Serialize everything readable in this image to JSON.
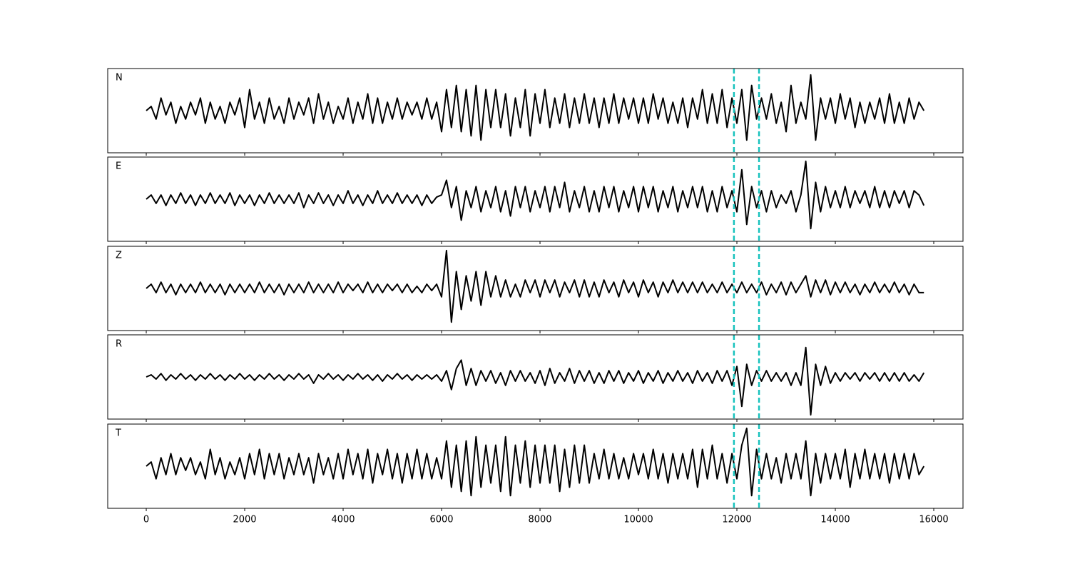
{
  "chart_data": {
    "type": "line",
    "x": [
      0,
      100,
      200,
      300,
      400,
      500,
      600,
      700,
      800,
      900,
      1000,
      1100,
      1200,
      1300,
      1400,
      1500,
      1600,
      1700,
      1800,
      1900,
      2000,
      2100,
      2200,
      2300,
      2400,
      2500,
      2600,
      2700,
      2800,
      2900,
      3000,
      3100,
      3200,
      3300,
      3400,
      3500,
      3600,
      3700,
      3800,
      3900,
      4000,
      4100,
      4200,
      4300,
      4400,
      4500,
      4600,
      4700,
      4800,
      4900,
      5000,
      5100,
      5200,
      5300,
      5400,
      5500,
      5600,
      5700,
      5800,
      5900,
      6000,
      6100,
      6200,
      6300,
      6400,
      6500,
      6600,
      6700,
      6800,
      6900,
      7000,
      7100,
      7200,
      7300,
      7400,
      7500,
      7600,
      7700,
      7800,
      7900,
      8000,
      8100,
      8200,
      8300,
      8400,
      8500,
      8600,
      8700,
      8800,
      8900,
      9000,
      9100,
      9200,
      9300,
      9400,
      9500,
      9600,
      9700,
      9800,
      9900,
      10000,
      10100,
      10200,
      10300,
      10400,
      10500,
      10600,
      10700,
      10800,
      10900,
      11000,
      11100,
      11200,
      11300,
      11400,
      11500,
      11600,
      11700,
      11800,
      11900,
      12000,
      12100,
      12200,
      12300,
      12400,
      12500,
      12600,
      12700,
      12800,
      12900,
      13000,
      13100,
      13200,
      13300,
      13400,
      13500,
      13600,
      13700,
      13800,
      13900,
      14000,
      14100,
      14200,
      14300,
      14400,
      14500,
      14600,
      14700,
      14800,
      14900,
      15000,
      15100,
      15200,
      15300,
      15400,
      15500,
      15600,
      15700,
      15800
    ],
    "series": [
      {
        "name": "N",
        "color": "#000000",
        "values": [
          0,
          0.1,
          -0.2,
          0.3,
          -0.1,
          0.2,
          -0.3,
          0.1,
          -0.2,
          0.2,
          -0.1,
          0.3,
          -0.3,
          0.2,
          -0.2,
          0.1,
          -0.3,
          0.2,
          -0.1,
          0.3,
          -0.4,
          0.5,
          -0.2,
          0.2,
          -0.3,
          0.3,
          -0.2,
          0.1,
          -0.3,
          0.3,
          -0.2,
          0.2,
          -0.1,
          0.3,
          -0.3,
          0.4,
          -0.2,
          0.2,
          -0.3,
          0.1,
          -0.2,
          0.3,
          -0.3,
          0.2,
          -0.2,
          0.4,
          -0.3,
          0.3,
          -0.3,
          0.2,
          -0.2,
          0.3,
          -0.2,
          0.2,
          -0.1,
          0.2,
          -0.2,
          0.3,
          -0.2,
          0.2,
          -0.5,
          0.5,
          -0.4,
          0.6,
          -0.5,
          0.5,
          -0.6,
          0.6,
          -0.7,
          0.5,
          -0.4,
          0.5,
          -0.4,
          0.4,
          -0.6,
          0.3,
          -0.4,
          0.5,
          -0.6,
          0.4,
          -0.3,
          0.5,
          -0.4,
          0.3,
          -0.3,
          0.4,
          -0.4,
          0.3,
          -0.3,
          0.4,
          -0.3,
          0.3,
          -0.4,
          0.3,
          -0.3,
          0.4,
          -0.3,
          0.3,
          -0.2,
          0.3,
          -0.3,
          0.3,
          -0.3,
          0.4,
          -0.2,
          0.3,
          -0.3,
          0.2,
          -0.3,
          0.3,
          -0.4,
          0.3,
          -0.2,
          0.5,
          -0.3,
          0.4,
          -0.3,
          0.5,
          -0.4,
          0.3,
          -0.3,
          0.5,
          -0.7,
          0.6,
          -0.2,
          0.3,
          -0.2,
          0.4,
          -0.3,
          0.2,
          -0.5,
          0.6,
          -0.3,
          0.2,
          -0.2,
          0.85,
          -0.7,
          0.3,
          -0.2,
          0.3,
          -0.3,
          0.4,
          -0.2,
          0.3,
          -0.4,
          0.2,
          -0.3,
          0.2,
          -0.2,
          0.3,
          -0.3,
          0.4,
          -0.3,
          0.2,
          -0.3,
          0.3,
          -0.2,
          0.2,
          0
        ]
      },
      {
        "name": "E",
        "color": "#000000",
        "values": [
          0,
          0.1,
          -0.1,
          0.1,
          -0.15,
          0.1,
          -0.1,
          0.15,
          -0.1,
          0.1,
          -0.15,
          0.1,
          -0.1,
          0.15,
          -0.1,
          0.1,
          -0.1,
          0.15,
          -0.15,
          0.1,
          -0.1,
          0.1,
          -0.15,
          0.1,
          -0.1,
          0.15,
          -0.1,
          0.1,
          -0.1,
          0.1,
          -0.1,
          0.15,
          -0.2,
          0.1,
          -0.1,
          0.15,
          -0.1,
          0.1,
          -0.15,
          0.1,
          -0.1,
          0.2,
          -0.1,
          0.1,
          -0.15,
          0.1,
          -0.1,
          0.2,
          -0.1,
          0.1,
          -0.1,
          0.15,
          -0.1,
          0.1,
          -0.1,
          0.1,
          -0.15,
          0.1,
          -0.1,
          0.05,
          0.1,
          0.45,
          -0.2,
          0.3,
          -0.5,
          0.2,
          -0.2,
          0.3,
          -0.3,
          0.2,
          -0.2,
          0.3,
          -0.3,
          0.2,
          -0.4,
          0.3,
          -0.2,
          0.3,
          -0.3,
          0.2,
          -0.2,
          0.3,
          -0.3,
          0.3,
          -0.2,
          0.4,
          -0.3,
          0.2,
          -0.2,
          0.3,
          -0.3,
          0.2,
          -0.3,
          0.3,
          -0.2,
          0.3,
          -0.3,
          0.2,
          -0.2,
          0.3,
          -0.3,
          0.3,
          -0.2,
          0.3,
          -0.3,
          0.2,
          -0.2,
          0.3,
          -0.3,
          0.2,
          -0.2,
          0.3,
          -0.2,
          0.3,
          -0.3,
          0.2,
          -0.3,
          0.3,
          -0.2,
          0.2,
          -0.3,
          0.7,
          -0.6,
          0.3,
          -0.2,
          0.2,
          -0.3,
          0.2,
          -0.2,
          0.1,
          -0.1,
          0.2,
          -0.3,
          0.1,
          0.9,
          -0.7,
          0.4,
          -0.3,
          0.3,
          -0.2,
          0.2,
          -0.2,
          0.3,
          -0.2,
          0.2,
          -0.1,
          0.2,
          -0.2,
          0.3,
          -0.2,
          0.2,
          -0.2,
          0.2,
          -0.1,
          0.2,
          -0.2,
          0.2,
          0.1,
          -0.15
        ]
      },
      {
        "name": "Z",
        "color": "#000000",
        "values": [
          0,
          0.1,
          -0.1,
          0.15,
          -0.1,
          0.1,
          -0.15,
          0.1,
          -0.1,
          0.1,
          -0.1,
          0.15,
          -0.1,
          0.1,
          -0.1,
          0.1,
          -0.15,
          0.1,
          -0.1,
          0.1,
          -0.1,
          0.1,
          -0.1,
          0.15,
          -0.1,
          0.1,
          -0.1,
          0.1,
          -0.15,
          0.1,
          -0.1,
          0.1,
          -0.1,
          0.15,
          -0.1,
          0.1,
          -0.1,
          0.1,
          -0.1,
          0.15,
          -0.1,
          0.1,
          -0.05,
          0.1,
          -0.1,
          0.15,
          -0.1,
          0.1,
          -0.1,
          0.1,
          -0.05,
          0.1,
          -0.1,
          0.1,
          -0.1,
          0.05,
          -0.1,
          0.1,
          -0.05,
          0.1,
          -0.2,
          0.9,
          -0.8,
          0.4,
          -0.5,
          0.3,
          -0.3,
          0.4,
          -0.4,
          0.4,
          -0.2,
          0.3,
          -0.2,
          0.2,
          -0.2,
          0.1,
          -0.2,
          0.2,
          -0.1,
          0.2,
          -0.2,
          0.2,
          -0.1,
          0.2,
          -0.2,
          0.15,
          -0.1,
          0.2,
          -0.2,
          0.2,
          -0.2,
          0.15,
          -0.2,
          0.2,
          -0.1,
          0.15,
          -0.2,
          0.2,
          -0.1,
          0.15,
          -0.2,
          0.2,
          -0.1,
          0.15,
          -0.2,
          0.15,
          -0.1,
          0.2,
          -0.1,
          0.15,
          -0.1,
          0.15,
          -0.1,
          0.15,
          -0.1,
          0.1,
          -0.1,
          0.15,
          -0.1,
          0.1,
          -0.1,
          0.15,
          -0.1,
          0.1,
          -0.1,
          0.15,
          -0.15,
          0.1,
          -0.1,
          0.15,
          -0.15,
          0.15,
          -0.1,
          0.1,
          0.3,
          -0.2,
          0.2,
          -0.1,
          0.2,
          -0.15,
          0.15,
          -0.1,
          0.15,
          -0.1,
          0.1,
          -0.15,
          0.1,
          -0.1,
          0.15,
          -0.1,
          0.1,
          -0.1,
          0.15,
          -0.1,
          0.1,
          -0.15,
          0.1,
          -0.1,
          -0.1
        ]
      },
      {
        "name": "R",
        "color": "#000000",
        "values": [
          0,
          0.05,
          -0.05,
          0.08,
          -0.08,
          0.05,
          -0.05,
          0.08,
          -0.05,
          0.05,
          -0.08,
          0.05,
          -0.05,
          0.08,
          -0.05,
          0.05,
          -0.08,
          0.05,
          -0.05,
          0.08,
          -0.05,
          0.05,
          -0.08,
          0.05,
          -0.05,
          0.08,
          -0.05,
          0.05,
          -0.08,
          0.05,
          -0.05,
          0.08,
          -0.05,
          0.05,
          -0.15,
          0.05,
          -0.05,
          0.08,
          -0.05,
          0.05,
          -0.08,
          0.05,
          -0.05,
          0.08,
          -0.05,
          0.05,
          -0.08,
          0.05,
          -0.1,
          0.05,
          -0.05,
          0.08,
          -0.05,
          0.05,
          -0.08,
          0.05,
          -0.05,
          0.05,
          -0.05,
          0.05,
          -0.1,
          0.15,
          -0.3,
          0.2,
          0.4,
          -0.2,
          0.2,
          -0.2,
          0.15,
          -0.1,
          0.15,
          -0.15,
          0.1,
          -0.2,
          0.15,
          -0.1,
          0.15,
          -0.1,
          0.1,
          -0.15,
          0.15,
          -0.2,
          0.2,
          -0.15,
          0.1,
          -0.1,
          0.2,
          -0.15,
          0.15,
          -0.1,
          0.15,
          -0.15,
          0.1,
          -0.15,
          0.15,
          -0.1,
          0.15,
          -0.15,
          0.1,
          -0.1,
          0.15,
          -0.15,
          0.1,
          -0.1,
          0.15,
          -0.15,
          0.1,
          -0.1,
          0.15,
          -0.1,
          0.1,
          -0.15,
          0.15,
          -0.1,
          0.1,
          -0.15,
          0.15,
          -0.1,
          0.15,
          -0.2,
          0.25,
          -0.7,
          0.3,
          -0.2,
          0.15,
          -0.1,
          0.15,
          -0.1,
          0.1,
          -0.1,
          0.1,
          -0.2,
          0.1,
          -0.2,
          0.7,
          -0.9,
          0.3,
          -0.2,
          0.25,
          -0.15,
          0.1,
          -0.1,
          0.1,
          -0.05,
          0.1,
          -0.1,
          0.1,
          -0.05,
          0.1,
          -0.1,
          0.1,
          -0.1,
          0.1,
          -0.1,
          0.1,
          -0.1,
          0.05,
          -0.1,
          0.1
        ]
      },
      {
        "name": "T",
        "color": "#000000",
        "values": [
          0,
          0.1,
          -0.3,
          0.2,
          -0.2,
          0.3,
          -0.2,
          0.2,
          -0.1,
          0.2,
          -0.2,
          0.1,
          -0.3,
          0.4,
          -0.2,
          0.2,
          -0.3,
          0.1,
          -0.2,
          0.2,
          -0.3,
          0.3,
          -0.2,
          0.4,
          -0.3,
          0.3,
          -0.2,
          0.3,
          -0.3,
          0.2,
          -0.2,
          0.3,
          -0.2,
          0.2,
          -0.4,
          0.3,
          -0.2,
          0.2,
          -0.3,
          0.3,
          -0.3,
          0.4,
          -0.2,
          0.3,
          -0.3,
          0.4,
          -0.4,
          0.3,
          -0.2,
          0.4,
          -0.3,
          0.3,
          -0.4,
          0.3,
          -0.3,
          0.4,
          -0.3,
          0.3,
          -0.3,
          0.2,
          -0.3,
          0.6,
          -0.5,
          0.5,
          -0.6,
          0.6,
          -0.7,
          0.7,
          -0.5,
          0.5,
          -0.4,
          0.5,
          -0.6,
          0.7,
          -0.7,
          0.5,
          -0.4,
          0.6,
          -0.5,
          0.5,
          -0.4,
          0.5,
          -0.4,
          0.5,
          -0.6,
          0.4,
          -0.5,
          0.5,
          -0.4,
          0.5,
          -0.4,
          0.3,
          -0.3,
          0.4,
          -0.3,
          0.3,
          -0.3,
          0.2,
          -0.3,
          0.3,
          -0.2,
          0.3,
          -0.3,
          0.4,
          -0.3,
          0.3,
          -0.4,
          0.3,
          -0.3,
          0.3,
          -0.3,
          0.4,
          -0.5,
          0.4,
          -0.3,
          0.5,
          -0.3,
          0.3,
          -0.4,
          0.3,
          -0.3,
          0.5,
          0.9,
          -0.7,
          0.4,
          -0.3,
          0.3,
          -0.3,
          0.2,
          -0.4,
          0.3,
          -0.3,
          0.3,
          -0.3,
          0.6,
          -0.7,
          0.3,
          -0.4,
          0.3,
          -0.3,
          0.3,
          -0.3,
          0.4,
          -0.5,
          0.3,
          -0.3,
          0.4,
          -0.3,
          0.3,
          -0.3,
          0.3,
          -0.4,
          0.3,
          -0.3,
          0.3,
          -0.3,
          0.3,
          -0.2,
          0
        ]
      }
    ],
    "xlim": [
      -783,
      16594
    ],
    "xticks": [
      0,
      2000,
      4000,
      6000,
      8000,
      10000,
      12000,
      14000,
      16000
    ],
    "ylim": [
      -1,
      1
    ],
    "vlines": [
      11940,
      12450
    ],
    "vline_color": "#17c2bd"
  }
}
